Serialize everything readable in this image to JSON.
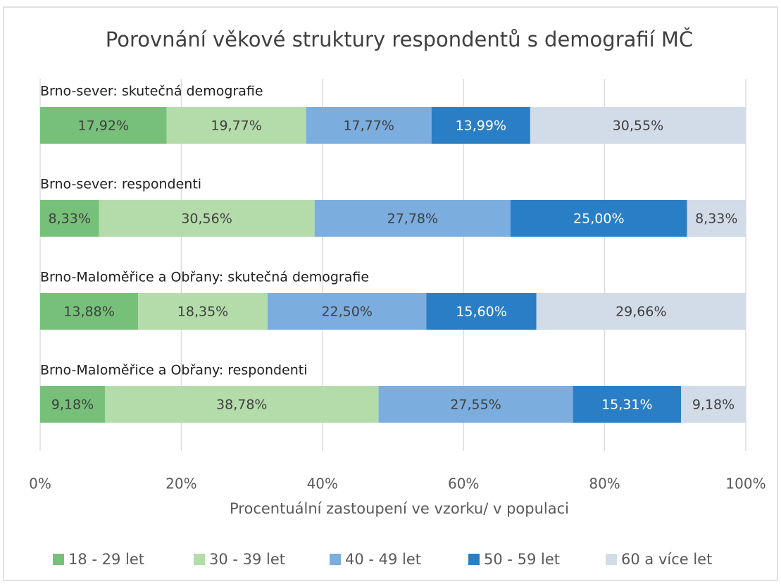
{
  "chart_data": {
    "type": "stacked-bar-horizontal",
    "title": "Porovnání věkové struktury respondentů s demografií MČ",
    "categories": [
      "Brno-sever: skutečná demografie",
      "Brno-sever: respondenti",
      "Brno-Maloměřice a Obřany: skutečná demografie",
      "Brno-Maloměřice a Obřany: respondenti"
    ],
    "series": [
      {
        "name": "18 - 29 let",
        "color": "#77c07a",
        "values": [
          17.92,
          8.33,
          13.88,
          9.18
        ],
        "value_labels": [
          "17,92%",
          "8,33%",
          "13,88%",
          "9,18%"
        ]
      },
      {
        "name": "30 - 39 let",
        "color": "#b4dcaa",
        "values": [
          19.77,
          30.56,
          18.35,
          38.78
        ],
        "value_labels": [
          "19,77%",
          "30,56%",
          "18,35%",
          "38,78%"
        ]
      },
      {
        "name": "40 - 49 let",
        "color": "#7badde",
        "values": [
          17.77,
          27.78,
          22.5,
          27.55
        ],
        "value_labels": [
          "17,77%",
          "27,78%",
          "22,50%",
          "27,55%"
        ]
      },
      {
        "name": "50 - 59 let",
        "color": "#2a7ec6",
        "values": [
          13.99,
          25.0,
          15.6,
          15.31
        ],
        "value_labels": [
          "13,99%",
          "25,00%",
          "15,60%",
          "15,31%"
        ]
      },
      {
        "name": "60 a více let",
        "color": "#d1dce8",
        "values": [
          30.55,
          8.33,
          29.66,
          9.18
        ],
        "value_labels": [
          "30,55%",
          "8,33%",
          "29,66%",
          "9,18%"
        ]
      }
    ],
    "xlabel": "Procentuální zastoupení ve vzorku/ v populaci",
    "xlim": [
      0,
      100
    ],
    "xticks": [
      {
        "value": 0,
        "label": "0%"
      },
      {
        "value": 20,
        "label": "20%"
      },
      {
        "value": 40,
        "label": "40%"
      },
      {
        "value": 60,
        "label": "60%"
      },
      {
        "value": 80,
        "label": "80%"
      },
      {
        "value": 100,
        "label": "100%"
      }
    ],
    "grid": true,
    "legend": "bottom"
  }
}
